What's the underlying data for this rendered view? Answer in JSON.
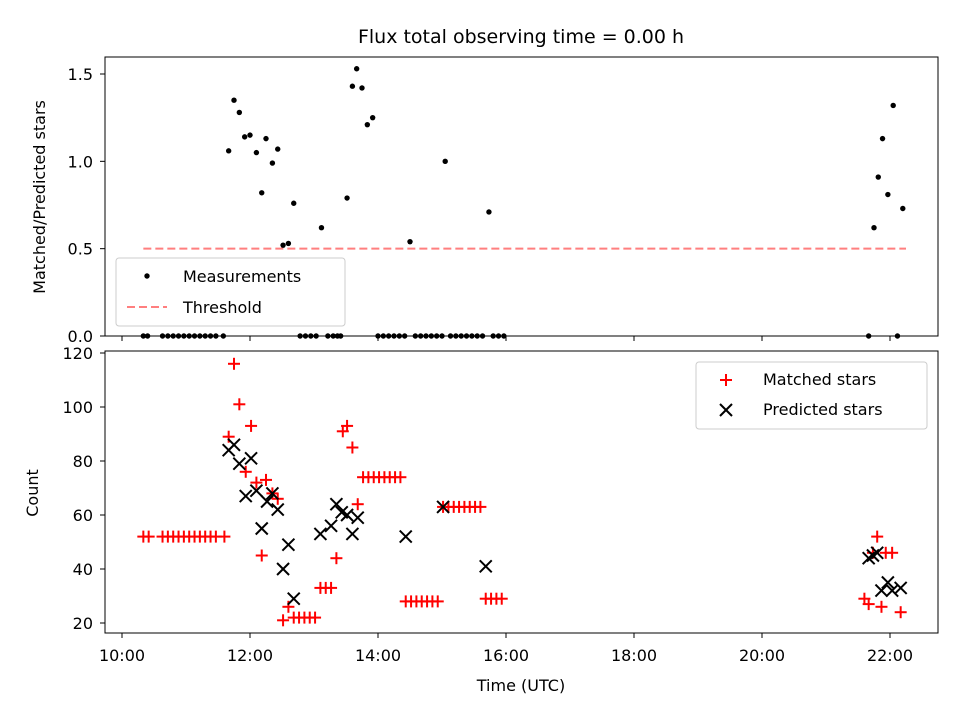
{
  "title": "Flux total observing time = 0.00 h",
  "chart_data": [
    {
      "type": "scatter",
      "ylabel": "Matched/Predicted stars",
      "xlabel": "",
      "xlim": [
        "10:00",
        "22:45"
      ],
      "ylim": [
        0,
        1.6
      ],
      "yticks": [
        "0.0",
        "0.5",
        "1.0",
        "1.5"
      ],
      "legend_position": "lower-left",
      "threshold": {
        "name": "Threshold",
        "value": 0.5,
        "x_start": "10:20",
        "x_end": "22:15",
        "color": "#ff7f7f"
      },
      "series": [
        {
          "name": "Measurements",
          "color": "#000000",
          "points": [
            [
              "10:20",
              0
            ],
            [
              "10:24",
              0
            ],
            [
              "10:38",
              0
            ],
            [
              "10:43",
              0
            ],
            [
              "10:48",
              0
            ],
            [
              "10:53",
              0
            ],
            [
              "10:58",
              0
            ],
            [
              "11:03",
              0
            ],
            [
              "11:08",
              0
            ],
            [
              "11:13",
              0
            ],
            [
              "11:18",
              0
            ],
            [
              "11:23",
              0
            ],
            [
              "11:28",
              0
            ],
            [
              "11:35",
              0
            ],
            [
              "11:40",
              1.06
            ],
            [
              "11:45",
              1.35
            ],
            [
              "11:50",
              1.28
            ],
            [
              "11:55",
              1.14
            ],
            [
              "12:00",
              1.15
            ],
            [
              "12:06",
              1.05
            ],
            [
              "12:11",
              0.82
            ],
            [
              "12:15",
              1.13
            ],
            [
              "12:21",
              0.99
            ],
            [
              "12:26",
              1.07
            ],
            [
              "12:31",
              0.52
            ],
            [
              "12:36",
              0.53
            ],
            [
              "12:41",
              0.76
            ],
            [
              "12:47",
              0
            ],
            [
              "12:52",
              0
            ],
            [
              "12:57",
              0
            ],
            [
              "13:02",
              0
            ],
            [
              "13:07",
              0.62
            ],
            [
              "13:13",
              0
            ],
            [
              "13:18",
              0
            ],
            [
              "13:22",
              0
            ],
            [
              "13:25",
              0
            ],
            [
              "13:31",
              0.79
            ],
            [
              "13:36",
              1.43
            ],
            [
              "13:40",
              1.53
            ],
            [
              "13:45",
              1.42
            ],
            [
              "13:50",
              1.21
            ],
            [
              "13:55",
              1.25
            ],
            [
              "14:00",
              0
            ],
            [
              "14:05",
              0
            ],
            [
              "14:10",
              0
            ],
            [
              "14:15",
              0
            ],
            [
              "14:20",
              0
            ],
            [
              "14:25",
              0
            ],
            [
              "14:30",
              0.54
            ],
            [
              "14:35",
              0
            ],
            [
              "14:40",
              0
            ],
            [
              "14:45",
              0
            ],
            [
              "14:50",
              0
            ],
            [
              "14:55",
              0
            ],
            [
              "15:00",
              0
            ],
            [
              "15:03",
              1.0
            ],
            [
              "15:08",
              0
            ],
            [
              "15:13",
              0
            ],
            [
              "15:18",
              0
            ],
            [
              "15:23",
              0
            ],
            [
              "15:28",
              0
            ],
            [
              "15:33",
              0
            ],
            [
              "15:38",
              0
            ],
            [
              "15:44",
              0.71
            ],
            [
              "15:48",
              0
            ],
            [
              "15:53",
              0
            ],
            [
              "15:58",
              0
            ],
            [
              "21:40",
              0
            ],
            [
              "21:45",
              0.62
            ],
            [
              "21:49",
              0.91
            ],
            [
              "21:53",
              1.13
            ],
            [
              "21:58",
              0.81
            ],
            [
              "22:03",
              1.32
            ],
            [
              "22:07",
              0
            ],
            [
              "22:12",
              0.73
            ]
          ]
        }
      ]
    },
    {
      "type": "scatter",
      "ylabel": "Count",
      "xlabel": "Time (UTC)",
      "xlim": [
        "10:00",
        "22:45"
      ],
      "ylim": [
        17,
        121
      ],
      "yticks": [
        "20",
        "40",
        "60",
        "80",
        "100",
        "120"
      ],
      "xticks": [
        "10:00",
        "12:00",
        "14:00",
        "16:00",
        "18:00",
        "20:00",
        "22:00"
      ],
      "legend_position": "upper-right",
      "series": [
        {
          "name": "Matched stars",
          "color": "#ff0000",
          "marker": "+",
          "points": [
            [
              "10:20",
              52
            ],
            [
              "10:25",
              52
            ],
            [
              "10:38",
              52
            ],
            [
              "10:43",
              52
            ],
            [
              "10:48",
              52
            ],
            [
              "10:53",
              52
            ],
            [
              "10:58",
              52
            ],
            [
              "11:03",
              52
            ],
            [
              "11:08",
              52
            ],
            [
              "11:13",
              52
            ],
            [
              "11:18",
              52
            ],
            [
              "11:23",
              52
            ],
            [
              "11:28",
              52
            ],
            [
              "11:36",
              52
            ],
            [
              "11:40",
              89
            ],
            [
              "11:45",
              116
            ],
            [
              "11:50",
              101
            ],
            [
              "11:56",
              76
            ],
            [
              "12:01",
              93
            ],
            [
              "12:06",
              72
            ],
            [
              "12:11",
              45
            ],
            [
              "12:15",
              73
            ],
            [
              "12:21",
              68
            ],
            [
              "12:26",
              66
            ],
            [
              "12:31",
              21
            ],
            [
              "12:36",
              26
            ],
            [
              "12:41",
              22
            ],
            [
              "12:46",
              22
            ],
            [
              "12:51",
              22
            ],
            [
              "12:56",
              22
            ],
            [
              "13:01",
              22
            ],
            [
              "13:06",
              33
            ],
            [
              "13:11",
              33
            ],
            [
              "13:16",
              33
            ],
            [
              "13:21",
              44
            ],
            [
              "13:27",
              91
            ],
            [
              "13:31",
              93
            ],
            [
              "13:36",
              85
            ],
            [
              "13:41",
              64
            ],
            [
              "13:46",
              74
            ],
            [
              "13:51",
              74
            ],
            [
              "13:56",
              74
            ],
            [
              "14:01",
              74
            ],
            [
              "14:06",
              74
            ],
            [
              "14:11",
              74
            ],
            [
              "14:16",
              74
            ],
            [
              "14:21",
              74
            ],
            [
              "14:26",
              28
            ],
            [
              "14:31",
              28
            ],
            [
              "14:36",
              28
            ],
            [
              "14:41",
              28
            ],
            [
              "14:46",
              28
            ],
            [
              "14:51",
              28
            ],
            [
              "14:56",
              28
            ],
            [
              "15:01",
              63
            ],
            [
              "15:06",
              63
            ],
            [
              "15:11",
              63
            ],
            [
              "15:16",
              63
            ],
            [
              "15:21",
              63
            ],
            [
              "15:26",
              63
            ],
            [
              "15:31",
              63
            ],
            [
              "15:36",
              63
            ],
            [
              "15:41",
              29
            ],
            [
              "15:46",
              29
            ],
            [
              "15:51",
              29
            ],
            [
              "15:56",
              29
            ],
            [
              "21:36",
              29
            ],
            [
              "21:40",
              27
            ],
            [
              "21:44",
              46
            ],
            [
              "21:48",
              52
            ],
            [
              "21:52",
              26
            ],
            [
              "21:56",
              46
            ],
            [
              "22:02",
              46
            ],
            [
              "22:10",
              24
            ]
          ]
        },
        {
          "name": "Predicted stars",
          "color": "#000000",
          "marker": "x",
          "points": [
            [
              "11:40",
              84
            ],
            [
              "11:45",
              86
            ],
            [
              "11:50",
              79
            ],
            [
              "11:56",
              67
            ],
            [
              "12:01",
              81
            ],
            [
              "12:06",
              69
            ],
            [
              "12:11",
              55
            ],
            [
              "12:16",
              65
            ],
            [
              "12:21",
              68
            ],
            [
              "12:26",
              62
            ],
            [
              "12:31",
              40
            ],
            [
              "12:36",
              49
            ],
            [
              "12:41",
              29
            ],
            [
              "13:06",
              53
            ],
            [
              "13:16",
              56
            ],
            [
              "13:21",
              64
            ],
            [
              "13:26",
              61
            ],
            [
              "13:31",
              60
            ],
            [
              "13:36",
              53
            ],
            [
              "13:41",
              59
            ],
            [
              "14:26",
              52
            ],
            [
              "15:01",
              63
            ],
            [
              "15:41",
              41
            ],
            [
              "21:40",
              44
            ],
            [
              "21:44",
              45
            ],
            [
              "21:48",
              46
            ],
            [
              "21:52",
              32
            ],
            [
              "21:58",
              35
            ],
            [
              "22:02",
              32
            ],
            [
              "22:10",
              33
            ]
          ]
        }
      ]
    }
  ]
}
